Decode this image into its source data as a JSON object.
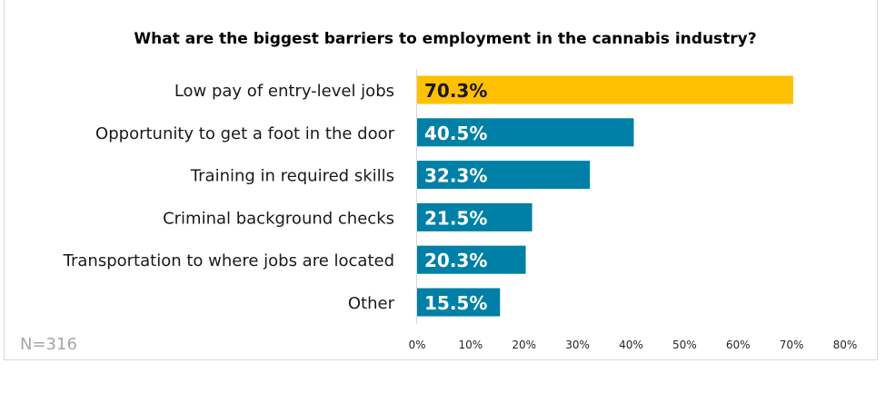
{
  "chart_data": {
    "type": "bar",
    "orientation": "horizontal",
    "title": "What are the biggest barriers to employment in the cannabis industry?",
    "categories": [
      "Low pay of entry-level jobs",
      "Opportunity to get a foot in the door",
      "Training in required skills",
      "Criminal background checks",
      "Transportation to where jobs are located",
      "Other"
    ],
    "values": [
      70.3,
      40.5,
      32.3,
      21.5,
      20.3,
      15.5
    ],
    "data_labels": [
      "70.3%",
      "40.5%",
      "32.3%",
      "21.5%",
      "20.3%",
      "15.5%"
    ],
    "xlim": [
      0,
      80
    ],
    "xticks": [
      "0%",
      "10%",
      "20%",
      "30%",
      "40%",
      "50%",
      "60%",
      "70%",
      "80%"
    ],
    "xlabel": "",
    "ylabel": "",
    "grid": false,
    "colors": {
      "highlight": "#FFC000",
      "default": "#0080A6",
      "highlight_label": "#1a1a1a",
      "default_label": "#ffffff"
    },
    "note": "N=316"
  }
}
